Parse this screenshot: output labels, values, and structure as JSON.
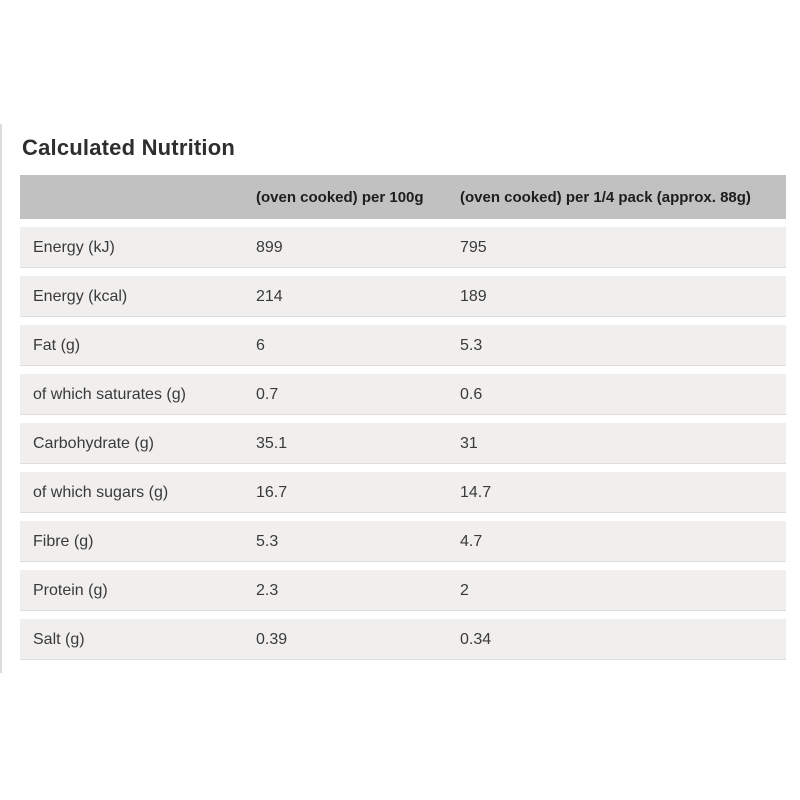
{
  "title": "Calculated Nutrition",
  "colors": {
    "page_background": "#ffffff",
    "header_background": "#c2c1c1",
    "row_background": "#f0efee",
    "row_hairline": "#dedddc",
    "left_edge_line": "#dcdcdc",
    "title_text": "#2e2e2e",
    "body_text": "#3a3a3a",
    "header_text": "#1d1d1d"
  },
  "table": {
    "header": {
      "columns": [
        "",
        "(oven cooked) per 100g",
        "(oven cooked) per 1/4 pack (approx. 88g)"
      ]
    },
    "rows": [
      {
        "label": "Energy (kJ)",
        "per_100g": "899",
        "per_quarter_pack": "795"
      },
      {
        "label": "Energy (kcal)",
        "per_100g": "214",
        "per_quarter_pack": "189"
      },
      {
        "label": "Fat (g)",
        "per_100g": "6",
        "per_quarter_pack": "5.3"
      },
      {
        "label": "of which saturates (g)",
        "per_100g": "0.7",
        "per_quarter_pack": "0.6"
      },
      {
        "label": "Carbohydrate (g)",
        "per_100g": "35.1",
        "per_quarter_pack": "31"
      },
      {
        "label": "of which sugars (g)",
        "per_100g": "16.7",
        "per_quarter_pack": "14.7"
      },
      {
        "label": "Fibre (g)",
        "per_100g": "5.3",
        "per_quarter_pack": "4.7"
      },
      {
        "label": "Protein (g)",
        "per_100g": "2.3",
        "per_quarter_pack": "2"
      },
      {
        "label": "Salt (g)",
        "per_100g": "0.39",
        "per_quarter_pack": "0.34"
      }
    ]
  }
}
